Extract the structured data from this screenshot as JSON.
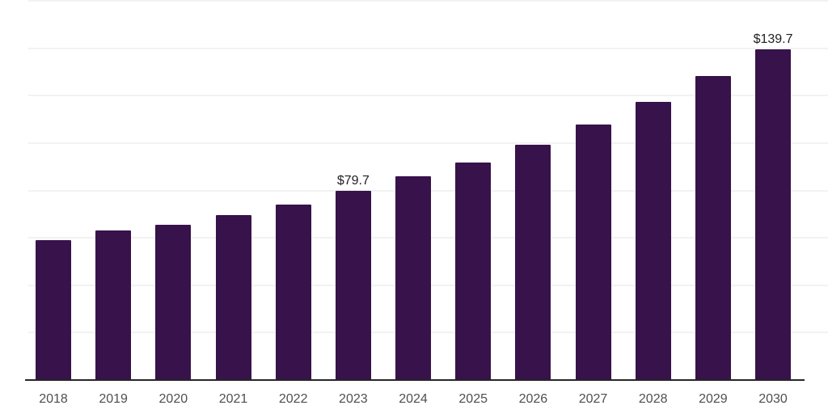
{
  "chart_data": {
    "type": "bar",
    "title": "",
    "xlabel": "",
    "ylabel": "",
    "categories": [
      "2018",
      "2019",
      "2020",
      "2021",
      "2022",
      "2023",
      "2024",
      "2025",
      "2026",
      "2027",
      "2028",
      "2029",
      "2030"
    ],
    "values": [
      59.0,
      63.2,
      65.6,
      69.7,
      74.1,
      79.7,
      85.9,
      91.9,
      99.4,
      107.9,
      117.5,
      128.4,
      139.7
    ],
    "bar_labels": [
      null,
      null,
      null,
      null,
      null,
      "$79.7",
      null,
      null,
      null,
      null,
      null,
      null,
      "$139.7"
    ],
    "ylim": [
      0,
      160
    ],
    "grid_step": 20,
    "grid": "horizontal",
    "y_tick_labels_visible": false,
    "legend": "none",
    "colors": {
      "bar": "#37124B",
      "gridline": "#f2f2f2",
      "axis_line": "#262626",
      "x_tick_label": "#4f4f4f",
      "bar_label": "#1f1f1f",
      "background": "#ffffff"
    }
  }
}
